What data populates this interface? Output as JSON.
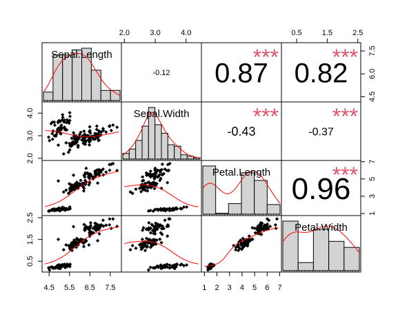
{
  "chart_data": {
    "type": "scatter",
    "title": "",
    "variables": [
      "Sepal.Length",
      "Sepal.Width",
      "Petal.Length",
      "Petal.Width"
    ],
    "ranges": {
      "Sepal.Length": [
        4.3,
        7.9
      ],
      "Sepal.Width": [
        2.0,
        4.4
      ],
      "Petal.Length": [
        1.0,
        6.9
      ],
      "Petal.Width": [
        0.1,
        2.5
      ]
    },
    "ticks": {
      "top": {
        "col": 1,
        "labels": [
          "2.0",
          "3.0",
          "4.0"
        ],
        "values": [
          2.0,
          3.0,
          4.0
        ]
      },
      "top2": {
        "col": 3,
        "labels": [
          "0.5",
          "1.5",
          "2.5"
        ],
        "values": [
          0.5,
          1.5,
          2.5
        ]
      },
      "bottom": {
        "col": 0,
        "labels": [
          "4.5",
          "5.5",
          "6.5",
          "7.5"
        ],
        "values": [
          4.5,
          5.5,
          6.5,
          7.5
        ]
      },
      "bottom2": {
        "col": 2,
        "labels": [
          "1",
          "2",
          "3",
          "4",
          "5",
          "6",
          "7"
        ],
        "values": [
          1,
          2,
          3,
          4,
          5,
          6,
          7
        ]
      },
      "left": {
        "row": 1,
        "labels": [
          "2.0",
          "3.0",
          "4.0"
        ],
        "values": [
          2.0,
          3.0,
          4.0
        ]
      },
      "left2": {
        "row": 3,
        "labels": [
          "0.5",
          "1.5",
          "2.5"
        ],
        "values": [
          0.5,
          1.5,
          2.5
        ]
      },
      "right": {
        "row": 0,
        "labels": [
          "4.5",
          "6.0",
          "7.5"
        ],
        "values": [
          4.5,
          6.0,
          7.5
        ]
      },
      "right2": {
        "row": 2,
        "labels": [
          "1",
          "3",
          "5",
          "7"
        ],
        "values": [
          1,
          3,
          5,
          7
        ]
      }
    },
    "correlations": [
      {
        "row": 0,
        "col": 1,
        "label": "-0.12",
        "stars": "",
        "size": 11
      },
      {
        "row": 0,
        "col": 2,
        "label": "0.87",
        "stars": "***",
        "size": 40
      },
      {
        "row": 0,
        "col": 3,
        "label": "0.82",
        "stars": "***",
        "size": 40
      },
      {
        "row": 1,
        "col": 2,
        "label": "-0.43",
        "stars": "***",
        "size": 18
      },
      {
        "row": 1,
        "col": 3,
        "label": "-0.37",
        "stars": "***",
        "size": 16
      },
      {
        "row": 2,
        "col": 3,
        "label": "0.96",
        "stars": "***",
        "size": 44
      }
    ],
    "histograms": {
      "Sepal.Length": {
        "breaks": [
          4.0,
          4.5,
          5.0,
          5.5,
          6.0,
          6.5,
          7.0,
          7.5,
          8.0
        ],
        "counts": [
          5,
          27,
          27,
          30,
          31,
          18,
          6,
          6
        ]
      },
      "Sepal.Width": {
        "breaks": [
          2.0,
          2.2,
          2.4,
          2.6,
          2.8,
          3.0,
          3.2,
          3.4,
          3.6,
          3.8,
          4.0,
          4.2,
          4.4
        ],
        "counts": [
          4,
          7,
          13,
          23,
          36,
          24,
          18,
          10,
          9,
          3,
          2,
          1
        ]
      },
      "Petal.Length": {
        "breaks": [
          1,
          2,
          3,
          4,
          5,
          6,
          7
        ],
        "counts": [
          50,
          1,
          11,
          43,
          35,
          10
        ]
      },
      "Petal.Width": {
        "breaks": [
          0.0,
          0.5,
          1.0,
          1.5,
          2.0,
          2.5
        ],
        "counts": [
          49,
          8,
          41,
          29,
          23
        ]
      }
    },
    "colors": {
      "points": "#000000",
      "smooth": "#ff0000",
      "stars": "#df536b",
      "bars": "#d3d3d3"
    }
  }
}
